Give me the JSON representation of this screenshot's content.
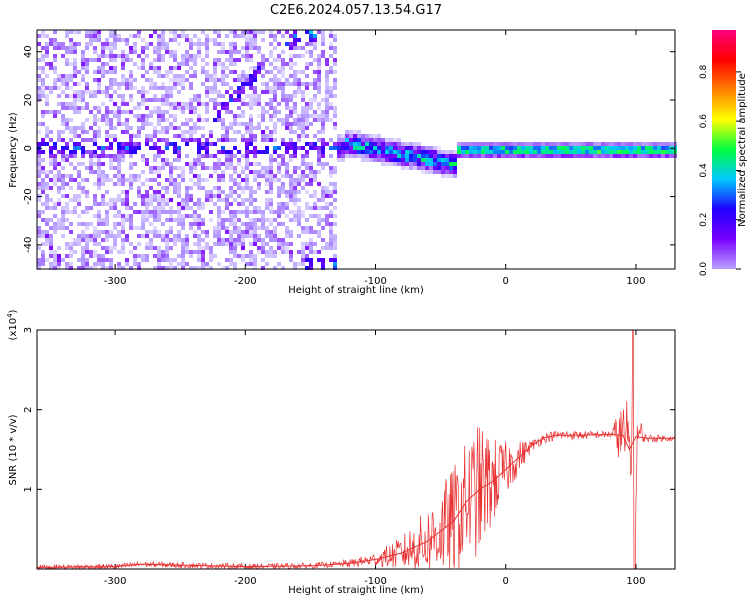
{
  "title": "C2E6.2024.057.13.54.G17",
  "colors": {
    "snr_line": "#e83030",
    "axis": "#000000",
    "colormap": [
      "#ffffff",
      "#b9a3ff",
      "#7a00ff",
      "#2000ff",
      "#00c8ff",
      "#00ff40",
      "#ffff00",
      "#ff8000",
      "#ff0000",
      "#ff0080"
    ]
  },
  "chart_data": [
    {
      "type": "heatmap",
      "xlabel": "Height of straight line (km)",
      "ylabel": "Frequency (Hz)",
      "xlim": [
        -360,
        130
      ],
      "ylim": [
        -50,
        49
      ],
      "xticks": [
        -300,
        -200,
        -100,
        0,
        100
      ],
      "yticks": [
        -40,
        -20,
        0,
        20,
        40
      ],
      "colorbar": {
        "label": "Normalized spectral amplitude",
        "range": [
          0,
          0.97
        ],
        "ticks": [
          "0.0",
          "0.2",
          "0.4",
          "0.6",
          "0.8"
        ]
      },
      "features": [
        {
          "x": [
            -360,
            -125
          ],
          "y": 1,
          "amplitude": 0.3
        },
        {
          "x": [
            -125,
            -40
          ],
          "y_from": 3,
          "y_to": -6,
          "amplitude": 0.4
        },
        {
          "x": [
            -40,
            130
          ],
          "y": 0,
          "amplitude": 0.55
        },
        {
          "x": [
            -225,
            -190
          ],
          "y_from": 14,
          "y_to": 33,
          "amplitude": 0.3
        },
        {
          "x": [
            -170,
            -145
          ],
          "y_from": 45,
          "y_to": 49,
          "amplitude": 0.35
        },
        {
          "x": [
            -155,
            -130
          ],
          "y": -48,
          "amplitude": 0.35
        }
      ]
    },
    {
      "type": "line",
      "xlabel": "Height of straight line (km)",
      "ylabel": "SNR (10 * v/v)",
      "scale_label": "(x10",
      "scale_exp": "4",
      "scale_close": ")",
      "xlim": [
        -360,
        130
      ],
      "ylim": [
        0,
        3
      ],
      "xticks": [
        -300,
        -200,
        -100,
        0,
        100
      ],
      "yticks": [
        1,
        2,
        3
      ],
      "series": [
        {
          "envelope_x": [
            -360,
            -300,
            -280,
            -200,
            -150,
            -120,
            -100,
            -80,
            -60,
            -40,
            -30,
            -20,
            -10,
            0,
            10,
            20,
            30,
            40,
            60,
            80,
            90,
            95,
            100,
            105,
            110,
            130
          ],
          "envelope_y": [
            0.02,
            0.03,
            0.06,
            0.03,
            0.04,
            0.07,
            0.12,
            0.2,
            0.35,
            0.6,
            0.85,
            1.0,
            1.1,
            1.25,
            1.4,
            1.55,
            1.65,
            1.68,
            1.68,
            1.69,
            1.68,
            1.5,
            1.66,
            1.65,
            1.64,
            1.64
          ],
          "noise_x": [
            -130,
            -100,
            -80,
            -60,
            -40,
            -30,
            -20,
            -10,
            0,
            20,
            80,
            90,
            95,
            100,
            105,
            130
          ],
          "noise_y": [
            0.05,
            0.12,
            0.3,
            0.6,
            1.0,
            1.1,
            1.2,
            0.8,
            0.5,
            0.1,
            0.06,
            0.6,
            0.9,
            1.3,
            0.08,
            0.04
          ],
          "features": [
            {
              "x": 98,
              "y": 3.0
            },
            {
              "x": 99,
              "y": 0.0
            }
          ]
        }
      ]
    }
  ]
}
